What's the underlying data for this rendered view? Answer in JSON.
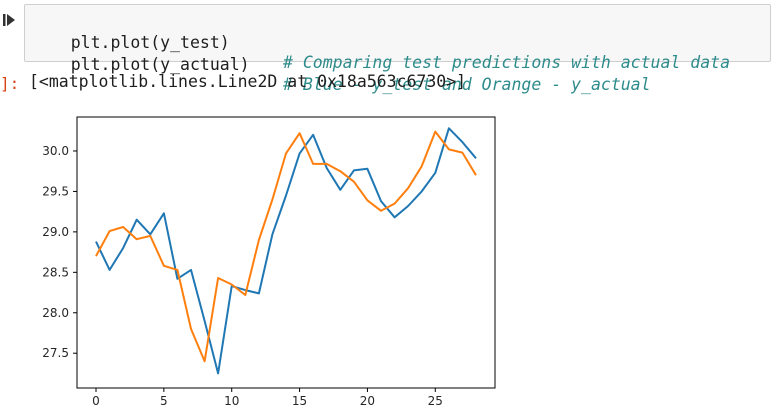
{
  "cell": {
    "lines": [
      {
        "code": "plt.plot(y_test)",
        "comment": "# Comparing test predictions with actual data"
      },
      {
        "code": "plt.plot(y_actual)",
        "comment": "# Blue - y_test and Orange - y_actual"
      }
    ]
  },
  "output": {
    "prompt": "]:",
    "text": "[<matplotlib.lines.Line2D at 0x18a563c6730>]"
  },
  "chart_data": {
    "type": "line",
    "x": [
      0,
      1,
      2,
      3,
      4,
      5,
      6,
      7,
      8,
      9,
      10,
      11,
      12,
      13,
      14,
      15,
      16,
      17,
      18,
      19,
      20,
      21,
      22,
      23,
      24,
      25,
      26,
      27,
      28
    ],
    "xlim": [
      -1.4,
      29.4
    ],
    "ylim": [
      27.07,
      30.42
    ],
    "xticks": [
      0,
      5,
      10,
      15,
      20,
      25
    ],
    "yticks": [
      27.5,
      28.0,
      28.5,
      29.0,
      29.5,
      30.0
    ],
    "ytick_labels": [
      "27.5",
      "28.0",
      "28.5",
      "29.0",
      "29.5",
      "30.0"
    ],
    "xtick_labels": [
      "0",
      "5",
      "10",
      "15",
      "20",
      "25"
    ],
    "series": [
      {
        "color": "#1f77b4",
        "values": [
          28.88,
          28.53,
          28.8,
          29.15,
          28.97,
          29.23,
          28.42,
          28.53,
          27.9,
          27.25,
          28.33,
          28.28,
          28.24,
          28.97,
          29.45,
          29.97,
          30.2,
          29.79,
          29.52,
          29.76,
          29.78,
          29.38,
          29.18,
          29.32,
          29.5,
          29.73,
          30.28,
          30.11,
          29.91
        ]
      },
      {
        "color": "#ff7f0e",
        "values": [
          28.7,
          29.01,
          29.06,
          28.91,
          28.95,
          28.58,
          28.53,
          27.8,
          27.4,
          28.43,
          28.35,
          28.22,
          28.9,
          29.4,
          29.97,
          30.22,
          29.84,
          29.84,
          29.75,
          29.62,
          29.39,
          29.26,
          29.35,
          29.54,
          29.81,
          30.24,
          30.02,
          29.98,
          29.7
        ]
      }
    ]
  }
}
